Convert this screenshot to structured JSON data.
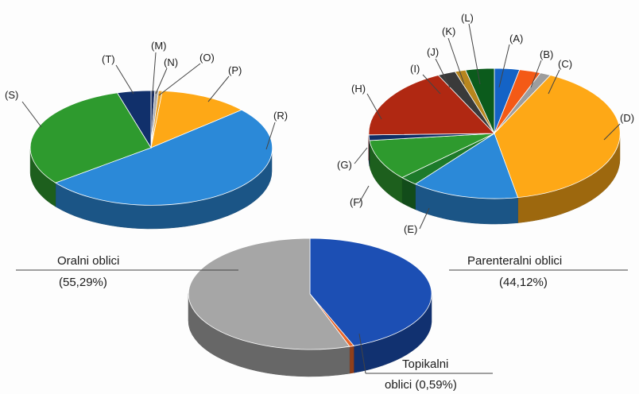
{
  "chart_data": [
    {
      "type": "pie",
      "style": "3d",
      "slices": [
        {
          "label": "(M)",
          "value": 0.5,
          "color": "#1b2f63"
        },
        {
          "label": "(N)",
          "value": 0.5,
          "color": "#a8a8a8"
        },
        {
          "label": "(O)",
          "value": 0.5,
          "color": "#eaa32a"
        },
        {
          "label": "(P)",
          "value": 12,
          "color": "#fea816"
        },
        {
          "label": "(R)",
          "value": 51,
          "color": "#2b89d8"
        },
        {
          "label": "(S)",
          "value": 31,
          "color": "#2e9a2e"
        },
        {
          "label": "(T)",
          "value": 4.5,
          "color": "#11306b"
        }
      ]
    },
    {
      "type": "pie",
      "style": "3d",
      "slices": [
        {
          "label": "(A)",
          "value": 3.5,
          "color": "#1463c6"
        },
        {
          "label": "(B)",
          "value": 3,
          "color": "#f45a16"
        },
        {
          "label": "(C)",
          "value": 1.5,
          "color": "#9d9d9d"
        },
        {
          "label": "(D)",
          "value": 43,
          "color": "#fea816"
        },
        {
          "label": "(E)",
          "value": 15,
          "color": "#2b89d8"
        },
        {
          "label": "(F)",
          "value": 2.5,
          "color": "#1d7a2a"
        },
        {
          "label": "(G)",
          "value": 11,
          "color": "#2e9a2e"
        },
        {
          "label": "(H)",
          "value": 1.5,
          "color": "#0e2e66"
        },
        {
          "label": "(I)",
          "value": 19.5,
          "color": "#b02812"
        },
        {
          "label": "(J)",
          "value": 2.5,
          "color": "#3a3a3a"
        },
        {
          "label": "(K)",
          "value": 1.5,
          "color": "#b8861e"
        },
        {
          "label": "(L)",
          "value": 4,
          "color": "#0b5b1c"
        }
      ]
    },
    {
      "type": "pie",
      "style": "3d",
      "slices": [
        {
          "label": "Parenteralni oblici",
          "value_text": "(44,12%)",
          "value": 44.12,
          "color": "#1c4fb4"
        },
        {
          "label": "Topikalni oblici",
          "value_text": "(0,59%)",
          "value": 0.59,
          "color": "#e8662a"
        },
        {
          "label": "Oralni oblici",
          "value_text": "(55,29%)",
          "value": 55.29,
          "color": "#a6a6a6"
        }
      ]
    }
  ],
  "labels": {
    "p1": [
      "(M)",
      "(N)",
      "(O)",
      "(P)",
      "(R)",
      "(S)",
      "(T)"
    ],
    "p2": [
      "(A)",
      "(B)",
      "(C)",
      "(D)",
      "(E)",
      "(F)",
      "(G)",
      "(H)",
      "(I)",
      "(J)",
      "(K)",
      "(L)"
    ],
    "p3_oral_name": "Oralni oblici",
    "p3_oral_value": "(55,29%)",
    "p3_par_name": "Parenteralni oblici",
    "p3_par_value": "(44,12%)",
    "p3_top_line1": "Topikalni",
    "p3_top_line2": "oblici (0,59%)"
  }
}
